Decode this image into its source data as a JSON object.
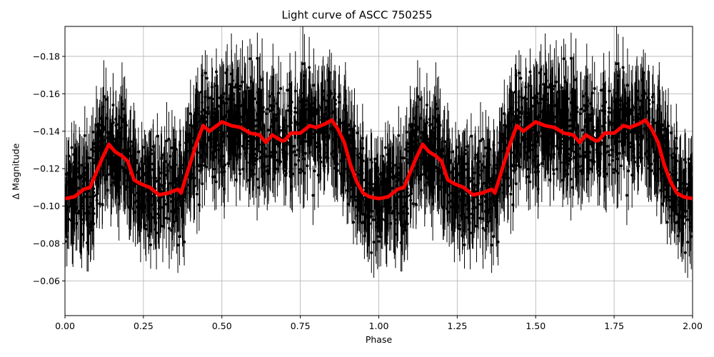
{
  "figure": {
    "title": "Light curve of ASCC 750255",
    "xlabel": "Phase",
    "ylabel": "Δ Magnitude"
  },
  "colors": {
    "data_points": "#000000",
    "model_curve": "#ff0000",
    "grid": "#b0b0b0",
    "axes": "#000000",
    "background": "#ffffff"
  },
  "axes": {
    "x_ticks": [
      "0.00",
      "0.25",
      "0.50",
      "0.75",
      "1.00",
      "1.25",
      "1.50",
      "1.75",
      "2.00"
    ],
    "y_ticks": [
      "−0.18",
      "−0.16",
      "−0.14",
      "−0.12",
      "−0.10",
      "−0.08",
      "−0.06"
    ]
  },
  "chart_data": {
    "type": "scatter",
    "title": "Light curve of ASCC 750255",
    "xlabel": "Phase",
    "ylabel": "Δ Magnitude",
    "xlim": [
      0.0,
      2.0
    ],
    "ylim": [
      -0.196,
      -0.0415
    ],
    "y_inverted": true,
    "grid": true,
    "legend": null,
    "x_tick_values": [
      0.0,
      0.25,
      0.5,
      0.75,
      1.0,
      1.25,
      1.5,
      1.75,
      2.0
    ],
    "y_tick_values": [
      -0.18,
      -0.16,
      -0.14,
      -0.12,
      -0.1,
      -0.08,
      -0.06
    ],
    "series": [
      {
        "name": "observations",
        "style": "black points with vertical error bars",
        "description": "Dense phase-folded photometry spanning roughly -0.06 to -0.18, shown twice (phase 0-2)",
        "approx_count_per_cycle": 1400,
        "typical_error": 0.015,
        "scatter_sigma": 0.018
      },
      {
        "name": "smoothed model",
        "style": "thick red line",
        "phase": [
          0.0,
          0.03,
          0.06,
          0.08,
          0.1,
          0.12,
          0.14,
          0.16,
          0.18,
          0.2,
          0.22,
          0.24,
          0.27,
          0.3,
          0.33,
          0.36,
          0.37,
          0.39,
          0.42,
          0.44,
          0.46,
          0.5,
          0.53,
          0.56,
          0.59,
          0.62,
          0.64,
          0.66,
          0.69,
          0.7,
          0.72,
          0.75,
          0.78,
          0.8,
          0.83,
          0.85,
          0.87,
          0.89,
          0.91,
          0.93,
          0.95,
          0.97,
          1.0
        ],
        "magnitude": [
          -0.104,
          -0.105,
          -0.109,
          -0.11,
          -0.118,
          -0.126,
          -0.133,
          -0.129,
          -0.127,
          -0.124,
          -0.114,
          -0.112,
          -0.11,
          -0.106,
          -0.107,
          -0.109,
          -0.107,
          -0.118,
          -0.134,
          -0.143,
          -0.14,
          -0.145,
          -0.143,
          -0.142,
          -0.139,
          -0.138,
          -0.134,
          -0.138,
          -0.135,
          -0.135,
          -0.139,
          -0.139,
          -0.143,
          -0.142,
          -0.144,
          -0.146,
          -0.141,
          -0.134,
          -0.122,
          -0.113,
          -0.107,
          -0.105,
          -0.104
        ],
        "repeats_over_phase": [
          0,
          2
        ]
      }
    ]
  }
}
